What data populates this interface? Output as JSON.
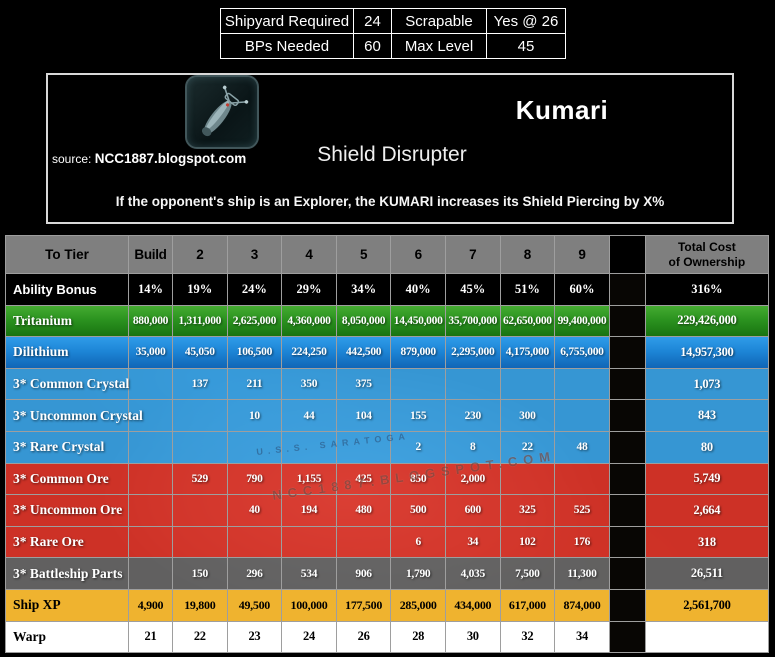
{
  "spec_table": {
    "rows": [
      [
        "Shipyard Required",
        "24",
        "Scrapable",
        "Yes @ 26"
      ],
      [
        "BPs Needed",
        "60",
        "Max Level",
        "45"
      ]
    ]
  },
  "header_card": {
    "ship_name": "Kumari",
    "source_prefix": "source:",
    "source_name": "NCC1887.blogspot.com",
    "ability_name": "Shield Disrupter",
    "ability_description": "If the opponent's ship is an Explorer, the KUMARI increases its Shield Piercing by X%",
    "ship_icon": "andorian-ship-thumbnail"
  },
  "cost_table": {
    "header": {
      "label": "To Tier",
      "tiers": [
        "Build",
        "2",
        "3",
        "4",
        "5",
        "6",
        "7",
        "8",
        "9"
      ],
      "total_line1": "Total Cost",
      "total_line2": "of Ownership"
    },
    "rows": [
      {
        "label": "Ability Bonus",
        "style": "black",
        "values": [
          "14%",
          "19%",
          "24%",
          "29%",
          "34%",
          "40%",
          "45%",
          "51%",
          "60%"
        ],
        "total": "316%"
      },
      {
        "label": "Tritanium",
        "style": "green",
        "values": [
          "880,000",
          "1,311,000",
          "2,625,000",
          "4,360,000",
          "8,050,000",
          "14,450,000",
          "35,700,000",
          "62,650,000",
          "99,400,000"
        ],
        "total": "229,426,000"
      },
      {
        "label": "Dilithium",
        "style": "blue",
        "values": [
          "35,000",
          "45,050",
          "106,500",
          "224,250",
          "442,500",
          "879,000",
          "2,295,000",
          "4,175,000",
          "6,755,000"
        ],
        "total": "14,957,300"
      },
      {
        "label": "3* Common Crystal",
        "style": "lightblue",
        "values": [
          "",
          "137",
          "211",
          "350",
          "375",
          "",
          "",
          "",
          ""
        ],
        "total": "1,073"
      },
      {
        "label": "3* Uncommon Crystal",
        "style": "lightblue",
        "values": [
          "",
          "",
          "10",
          "44",
          "104",
          "155",
          "230",
          "300",
          ""
        ],
        "total": "843"
      },
      {
        "label": "3* Rare Crystal",
        "style": "lightblue",
        "values": [
          "",
          "",
          "",
          "",
          "",
          "2",
          "8",
          "22",
          "48"
        ],
        "total": "80"
      },
      {
        "label": "3* Common Ore",
        "style": "red",
        "values": [
          "",
          "529",
          "790",
          "1,155",
          "425",
          "850",
          "2,000",
          "",
          ""
        ],
        "total": "5,749"
      },
      {
        "label": "3* Uncommon Ore",
        "style": "red",
        "values": [
          "",
          "",
          "40",
          "194",
          "480",
          "500",
          "600",
          "325",
          "525"
        ],
        "total": "2,664"
      },
      {
        "label": "3* Rare Ore",
        "style": "red",
        "values": [
          "",
          "",
          "",
          "",
          "",
          "6",
          "34",
          "102",
          "176"
        ],
        "total": "318"
      },
      {
        "label": "3* Battleship Parts",
        "style": "gray",
        "values": [
          "",
          "150",
          "296",
          "534",
          "906",
          "1,790",
          "4,035",
          "7,500",
          "11,300"
        ],
        "total": "26,511"
      },
      {
        "label": "Ship XP",
        "style": "amber",
        "values": [
          "4,900",
          "19,800",
          "49,500",
          "100,000",
          "177,500",
          "285,000",
          "434,000",
          "617,000",
          "874,000"
        ],
        "total": "2,561,700"
      },
      {
        "label": "Warp",
        "style": "white",
        "values": [
          "21",
          "22",
          "23",
          "24",
          "26",
          "28",
          "30",
          "32",
          "34"
        ],
        "total": ""
      }
    ]
  },
  "background": {
    "watermark": "NCC1887.BLOGSPOT.COM",
    "photo_label": "U.S.S. SARATOGA"
  },
  "colors": {
    "tritanium_green": "#2c9420",
    "dilithium_blue": "#1d85d6",
    "crystal_light_blue": "#3eabf0",
    "ore_red": "#e9382b",
    "parts_gray": "#686767",
    "ship_xp_amber": "#efb32f",
    "header_gray": "#7f7f7f"
  }
}
